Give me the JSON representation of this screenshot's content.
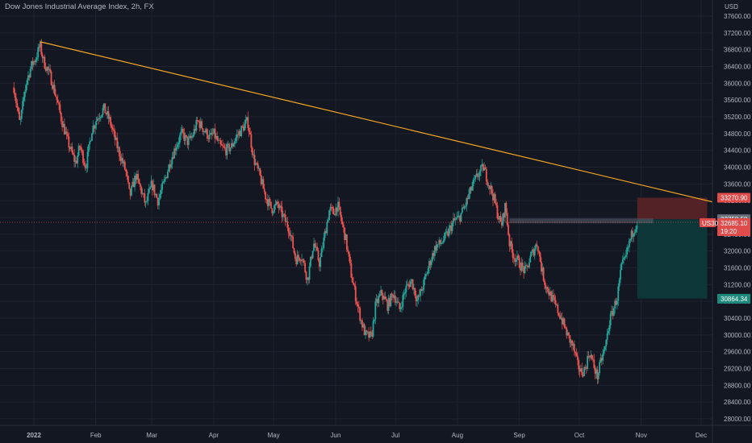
{
  "chart_title": "Dow Jones Industrial Average Index, 2h, FX",
  "currency": "USD",
  "colors": {
    "background": "#131722",
    "grid": "#1f2331",
    "axis_text": "#b2b5be",
    "up": "#26a69a",
    "down": "#ef5350",
    "trendline": "#f5a623",
    "stop_zone": "#5a2327",
    "target_zone": "#0c3a3a"
  },
  "chart_data": {
    "type": "candlestick",
    "timeframe": "2h",
    "ylim": [
      27800,
      37800
    ],
    "y_ticks": [
      37600,
      37200,
      36800,
      36400,
      36000,
      35600,
      35200,
      34800,
      34400,
      34000,
      33600,
      33200,
      32800,
      32400,
      32000,
      31600,
      31200,
      30800,
      30400,
      30000,
      29600,
      29200,
      28800,
      28400,
      28000
    ],
    "y_tick_labels": [
      "37600.00",
      "37200.00",
      "36800.00",
      "36400.00",
      "36000.00",
      "35600.00",
      "35200.00",
      "34800.00",
      "34400.00",
      "34000.00",
      "33600.00",
      "33200.00",
      "32800.00",
      "32400.00",
      "32000.00",
      "31600.00",
      "31200.00",
      "30800.00",
      "30400.00",
      "30000.00",
      "29600.00",
      "29200.00",
      "28800.00",
      "28400.00",
      "28000.00"
    ],
    "x_labels": [
      "2022",
      "Feb",
      "Mar",
      "Apr",
      "May",
      "Jun",
      "Jul",
      "Aug",
      "Sep",
      "Oct",
      "Nov",
      "Dec"
    ],
    "x_label_day": [
      0,
      31,
      59,
      90,
      120,
      151,
      181,
      212,
      243,
      273,
      304,
      334
    ],
    "day_range": [
      -12,
      350
    ],
    "price_path": [
      [
        -10,
        35900
      ],
      [
        -7,
        35000
      ],
      [
        -4,
        36000
      ],
      [
        -1,
        36450
      ],
      [
        1,
        36600
      ],
      [
        3,
        36900
      ],
      [
        5,
        36500
      ],
      [
        8,
        36200
      ],
      [
        11,
        35700
      ],
      [
        14,
        35100
      ],
      [
        17,
        34600
      ],
      [
        20,
        34200
      ],
      [
        21,
        34100
      ],
      [
        23,
        34500
      ],
      [
        26,
        34000
      ],
      [
        29,
        34900
      ],
      [
        32,
        35200
      ],
      [
        35,
        35400
      ],
      [
        38,
        35100
      ],
      [
        41,
        34600
      ],
      [
        43,
        34300
      ],
      [
        46,
        33900
      ],
      [
        48,
        33300
      ],
      [
        51,
        33800
      ],
      [
        54,
        33400
      ],
      [
        56,
        33100
      ],
      [
        59,
        33600
      ],
      [
        62,
        33200
      ],
      [
        65,
        33600
      ],
      [
        68,
        34100
      ],
      [
        71,
        34500
      ],
      [
        74,
        34800
      ],
      [
        77,
        34600
      ],
      [
        79,
        34700
      ],
      [
        82,
        35100
      ],
      [
        85,
        34900
      ],
      [
        88,
        34700
      ],
      [
        90,
        34800
      ],
      [
        93,
        34500
      ],
      [
        96,
        34400
      ],
      [
        99,
        34500
      ],
      [
        101,
        34700
      ],
      [
        104,
        34900
      ],
      [
        107,
        35100
      ],
      [
        110,
        34200
      ],
      [
        113,
        33800
      ],
      [
        116,
        33300
      ],
      [
        119,
        33000
      ],
      [
        122,
        33100
      ],
      [
        125,
        32800
      ],
      [
        128,
        32500
      ],
      [
        131,
        31800
      ],
      [
        134,
        31900
      ],
      [
        137,
        31300
      ],
      [
        140,
        32200
      ],
      [
        143,
        31700
      ],
      [
        146,
        32500
      ],
      [
        148,
        33000
      ],
      [
        150,
        32900
      ],
      [
        152,
        33100
      ],
      [
        154,
        32700
      ],
      [
        156,
        32300
      ],
      [
        159,
        31400
      ],
      [
        162,
        30700
      ],
      [
        164,
        30300
      ],
      [
        166,
        30000
      ],
      [
        169,
        29950
      ],
      [
        171,
        30700
      ],
      [
        174,
        31000
      ],
      [
        177,
        30700
      ],
      [
        180,
        31000
      ],
      [
        183,
        30600
      ],
      [
        186,
        31100
      ],
      [
        189,
        31300
      ],
      [
        192,
        30800
      ],
      [
        195,
        31200
      ],
      [
        198,
        31700
      ],
      [
        201,
        32100
      ],
      [
        204,
        32200
      ],
      [
        207,
        32400
      ],
      [
        210,
        32700
      ],
      [
        213,
        32800
      ],
      [
        216,
        33100
      ],
      [
        219,
        33500
      ],
      [
        222,
        33800
      ],
      [
        225,
        34000
      ],
      [
        227,
        33700
      ],
      [
        230,
        33300
      ],
      [
        232,
        32900
      ],
      [
        234,
        32600
      ],
      [
        236,
        33100
      ],
      [
        238,
        32200
      ],
      [
        240,
        31900
      ],
      [
        243,
        31700
      ],
      [
        246,
        31500
      ],
      [
        249,
        31900
      ],
      [
        252,
        32200
      ],
      [
        254,
        31600
      ],
      [
        256,
        31200
      ],
      [
        258,
        31000
      ],
      [
        261,
        30700
      ],
      [
        264,
        30400
      ],
      [
        267,
        30000
      ],
      [
        270,
        29700
      ],
      [
        272,
        29300
      ],
      [
        274,
        29100
      ],
      [
        276,
        29200
      ],
      [
        278,
        29600
      ],
      [
        280,
        29300
      ],
      [
        282,
        29000
      ],
      [
        284,
        29400
      ],
      [
        286,
        29700
      ],
      [
        288,
        30300
      ],
      [
        290,
        30600
      ],
      [
        292,
        30900
      ],
      [
        294,
        31600
      ],
      [
        296,
        31800
      ],
      [
        298,
        32200
      ],
      [
        300,
        32500
      ],
      [
        302,
        32700
      ]
    ],
    "trendline": {
      "from": [
        3,
        36990
      ],
      "to": [
        345,
        33110
      ]
    },
    "position": {
      "entry": 32758.58,
      "stop": 33270.9,
      "target": 30864.34,
      "day_start": 302,
      "day_end": 337
    },
    "current_price": 32685.1,
    "symbol_badge": "US30",
    "countdown": "19:20",
    "price_labels": [
      "33270.90",
      "32758.58",
      "32685.10",
      "30864.34"
    ]
  }
}
